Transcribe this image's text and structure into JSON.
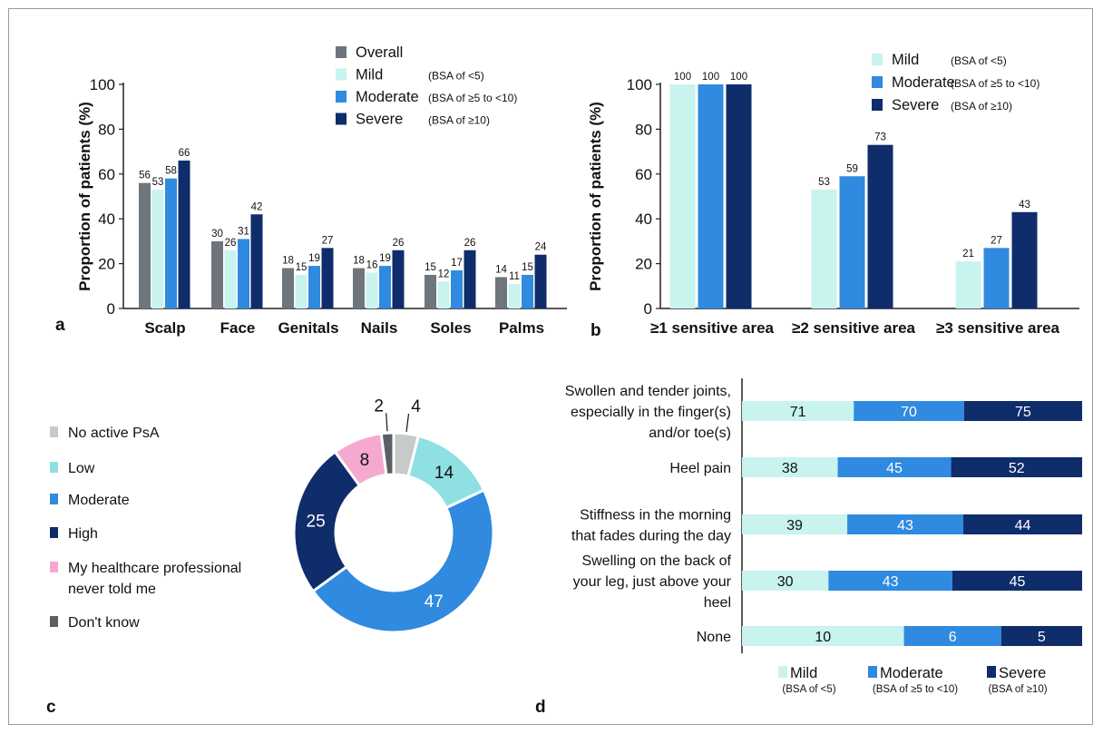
{
  "colors": {
    "overall": "#6e757d",
    "mild": "#c8f3ee",
    "moderate": "#2f8ae0",
    "severe": "#0f2c6b",
    "no_active": "#c6cac9",
    "low": "#8ee0e2",
    "pink": "#f6a9d0",
    "dont_know": "#5b6066"
  },
  "chart_data": [
    {
      "panel": "a",
      "type": "bar",
      "ylabel": "Proportion of patients (%)",
      "ylim": [
        0,
        100
      ],
      "yticks": [
        0,
        20,
        40,
        60,
        80,
        100
      ],
      "categories": [
        "Scalp",
        "Face",
        "Genitals",
        "Nails",
        "Soles",
        "Palms"
      ],
      "series": [
        {
          "name": "Overall",
          "note": "",
          "values": [
            56,
            30,
            18,
            18,
            15,
            14
          ]
        },
        {
          "name": "Mild",
          "note": "(BSA of <5)",
          "values": [
            53,
            26,
            15,
            16,
            12,
            11
          ]
        },
        {
          "name": "Moderate",
          "note": "(BSA of ≥5 to <10)",
          "values": [
            58,
            31,
            19,
            19,
            17,
            15
          ]
        },
        {
          "name": "Severe",
          "note": "(BSA of ≥10)",
          "values": [
            66,
            42,
            27,
            26,
            26,
            24
          ]
        }
      ],
      "legend": "top-right"
    },
    {
      "panel": "b",
      "type": "bar",
      "ylabel": "Proportion of patients (%)",
      "ylim": [
        0,
        100
      ],
      "yticks": [
        0,
        20,
        40,
        60,
        80,
        100
      ],
      "categories": [
        "≥1 sensitive area",
        "≥2 sensitive area",
        "≥3 sensitive area"
      ],
      "series": [
        {
          "name": "Mild",
          "note": "(BSA of <5)",
          "values": [
            100,
            53,
            21
          ]
        },
        {
          "name": "Moderate",
          "note": "(BSA of ≥5 to <10)",
          "values": [
            100,
            59,
            27
          ]
        },
        {
          "name": "Severe",
          "note": "(BSA of ≥10)",
          "values": [
            100,
            73,
            43
          ]
        }
      ],
      "legend": "top-right"
    },
    {
      "panel": "c",
      "type": "pie",
      "labels": [
        "No active PsA",
        "Low",
        "Moderate",
        "High",
        "My healthcare professional never told me",
        "Don't know"
      ],
      "values": [
        4,
        14,
        47,
        25,
        8,
        2
      ],
      "legend": "left"
    },
    {
      "panel": "d",
      "type": "bar",
      "orientation": "horizontal",
      "stacked": true,
      "categories": [
        "Swollen and tender joints, especially in the finger(s) and/or toe(s)",
        "Heel pain",
        "Stiffness in the morning that fades during the day",
        "Swelling on the back of your leg, just above your heel",
        "None"
      ],
      "series": [
        {
          "name": "Mild",
          "note": "(BSA of <5)",
          "values": [
            71,
            38,
            39,
            30,
            10
          ]
        },
        {
          "name": "Moderate",
          "note": "(BSA of ≥5 to <10)",
          "values": [
            70,
            45,
            43,
            43,
            6
          ]
        },
        {
          "name": "Severe",
          "note": "(BSA of ≥10)",
          "values": [
            75,
            52,
            44,
            45,
            5
          ]
        }
      ],
      "legend": "bottom"
    }
  ],
  "panel_labels": {
    "a": "a",
    "b": "b",
    "c": "c",
    "d": "d"
  },
  "panel_c_legend": [
    {
      "label": "No active PsA",
      "color_key": "no_active"
    },
    {
      "label": "Low",
      "color_key": "low"
    },
    {
      "label": "Moderate",
      "color_key": "moderate"
    },
    {
      "label": "High",
      "color_key": "severe"
    },
    {
      "label": "My healthcare professional never told me",
      "color_key": "pink"
    },
    {
      "label": "Don't know",
      "color_key": "dont_know"
    }
  ],
  "panel_d_labels": [
    [
      "Swollen and tender joints,",
      "especially in the finger(s)",
      "and/or toe(s)"
    ],
    [
      "Heel pain"
    ],
    [
      "Stiffness in the morning",
      "that fades during the day"
    ],
    [
      "Swelling on the back of",
      "your leg, just above your",
      "heel"
    ],
    [
      "None"
    ]
  ]
}
